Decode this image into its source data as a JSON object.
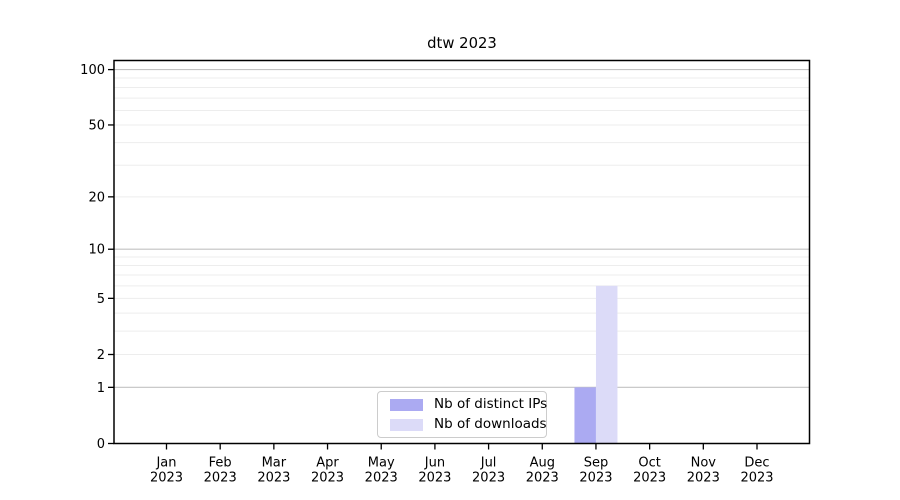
{
  "chart_data": {
    "type": "bar",
    "title": "dtw 2023",
    "x_tick_labels": [
      [
        "Jan",
        "2023"
      ],
      [
        "Feb",
        "2023"
      ],
      [
        "Mar",
        "2023"
      ],
      [
        "Apr",
        "2023"
      ],
      [
        "May",
        "2023"
      ],
      [
        "Jun",
        "2023"
      ],
      [
        "Jul",
        "2023"
      ],
      [
        "Aug",
        "2023"
      ],
      [
        "Sep",
        "2023"
      ],
      [
        "Oct",
        "2023"
      ],
      [
        "Nov",
        "2023"
      ],
      [
        "Dec",
        "2023"
      ]
    ],
    "series": [
      {
        "name": "Nb of distinct IPs",
        "color": "#abaaf2",
        "values": [
          0,
          0,
          0,
          0,
          0,
          0,
          0,
          0,
          1,
          0,
          0,
          0
        ]
      },
      {
        "name": "Nb of downloads",
        "color": "#dcdbf8",
        "values": [
          0,
          0,
          0,
          0,
          0,
          0,
          0,
          0,
          6,
          0,
          0,
          0
        ]
      }
    ],
    "y_scale": "log1p",
    "ylim": [
      0,
      112
    ],
    "y_tick_values": [
      0,
      1,
      2,
      5,
      10,
      20,
      50,
      100
    ],
    "y_major_grid": [
      1,
      10,
      100
    ],
    "y_minor_grid": [
      2,
      3,
      4,
      5,
      6,
      7,
      8,
      9,
      20,
      30,
      40,
      50,
      60,
      70,
      80,
      90
    ],
    "grid": "horizontal",
    "legend_position": "inside-bottom-center",
    "colors": {
      "axis": "#000000",
      "text": "#000000",
      "major_grid": "#c2c2c2",
      "minor_grid": "#ededed",
      "legend_border": "#cccccc",
      "background": "#ffffff"
    }
  }
}
